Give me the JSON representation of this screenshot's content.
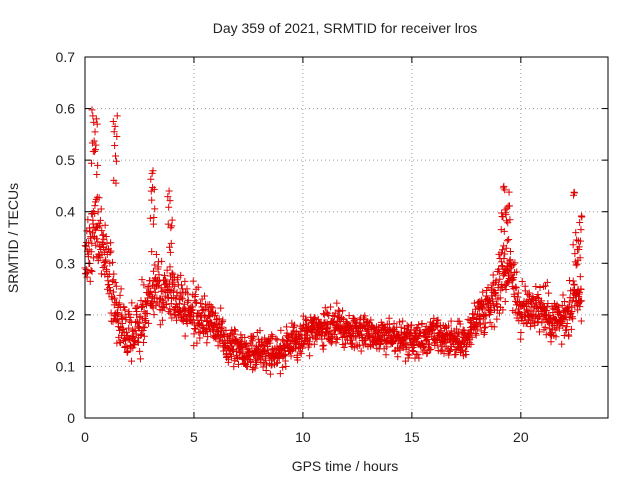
{
  "chart_data": {
    "type": "scatter",
    "title": "Day 359 of 2021, SRMTID for receiver lros",
    "xlabel": "GPS time / hours",
    "ylabel": "SRMTID / TECUs",
    "xlim": [
      0,
      24
    ],
    "ylim": [
      0,
      0.7
    ],
    "xticks": [
      0,
      5,
      10,
      15,
      20
    ],
    "yticks": [
      0,
      0.1,
      0.2,
      0.3,
      0.4,
      0.5,
      0.6,
      0.7
    ],
    "grid": true,
    "marker": "plus",
    "colors": {
      "series": "#e00000",
      "grid": "#999999",
      "axis": "#000000"
    },
    "trend": {
      "x": [
        0,
        0.5,
        1,
        1.5,
        2,
        2.5,
        3,
        3.5,
        4,
        4.5,
        5,
        5.5,
        6,
        6.5,
        7,
        7.5,
        8,
        8.5,
        9,
        9.5,
        10,
        10.5,
        11,
        11.5,
        12,
        12.5,
        13,
        13.5,
        14,
        14.5,
        15,
        15.5,
        16,
        16.5,
        17,
        17.5,
        18,
        18.5,
        19,
        19.5,
        20,
        20.5,
        21,
        21.5,
        22,
        22.5,
        22.8
      ],
      "y": [
        0.3,
        0.38,
        0.3,
        0.2,
        0.16,
        0.17,
        0.25,
        0.25,
        0.24,
        0.22,
        0.2,
        0.19,
        0.18,
        0.15,
        0.14,
        0.13,
        0.13,
        0.13,
        0.13,
        0.14,
        0.16,
        0.17,
        0.17,
        0.18,
        0.17,
        0.17,
        0.17,
        0.16,
        0.16,
        0.15,
        0.15,
        0.15,
        0.16,
        0.15,
        0.15,
        0.15,
        0.2,
        0.22,
        0.26,
        0.3,
        0.2,
        0.22,
        0.21,
        0.19,
        0.19,
        0.22,
        0.24
      ]
    },
    "spread": {
      "x": [
        0,
        1,
        2,
        3,
        4,
        6,
        12,
        16,
        17,
        18,
        19,
        20,
        21,
        22,
        22.8
      ],
      "y": [
        0.1,
        0.12,
        0.08,
        0.09,
        0.08,
        0.06,
        0.05,
        0.05,
        0.05,
        0.06,
        0.09,
        0.08,
        0.07,
        0.07,
        0.08
      ]
    },
    "bursts": [
      {
        "x_start": 0.3,
        "x_end": 0.6,
        "y_min": 0.45,
        "y_max": 0.6
      },
      {
        "x_start": 1.3,
        "x_end": 1.5,
        "y_min": 0.45,
        "y_max": 0.59
      },
      {
        "x_start": 3.0,
        "x_end": 3.2,
        "y_min": 0.35,
        "y_max": 0.48
      },
      {
        "x_start": 3.8,
        "x_end": 4.0,
        "y_min": 0.32,
        "y_max": 0.47
      },
      {
        "x_start": 19.1,
        "x_end": 19.5,
        "y_min": 0.32,
        "y_max": 0.46
      },
      {
        "x_start": 22.4,
        "x_end": 22.8,
        "y_min": 0.28,
        "y_max": 0.45
      }
    ],
    "sample_step_hours": 0.012,
    "points_per_sample": 1
  }
}
